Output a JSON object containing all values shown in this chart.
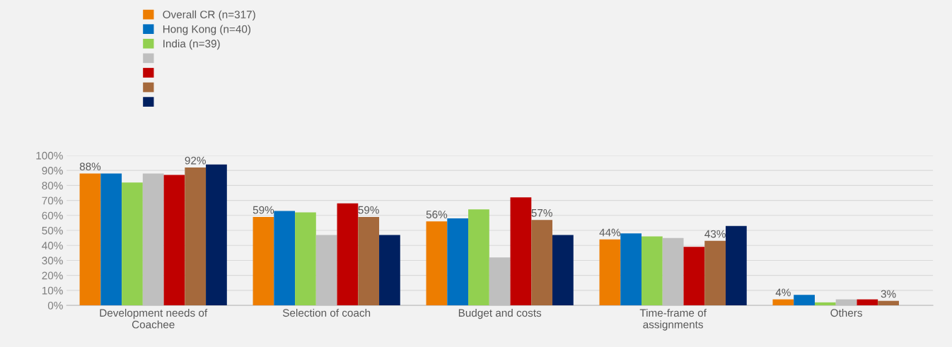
{
  "chart_data": {
    "type": "bar",
    "categories": [
      "Development needs of\nCoachee",
      "Selection of coach",
      "Budget and costs",
      "Time-frame of\nassignments",
      "Others"
    ],
    "series": [
      {
        "name": "Overall CR (n=317)",
        "color": "#ed7d00",
        "values": [
          88,
          59,
          56,
          44,
          4
        ],
        "value_labels": [
          "88%",
          "59%",
          "56%",
          "44%",
          "4%"
        ]
      },
      {
        "name": "Hong Kong (n=40)",
        "color": "#0070c0",
        "values": [
          88,
          63,
          58,
          48,
          7
        ]
      },
      {
        "name": "India (n=39)",
        "color": "#92d050",
        "values": [
          82,
          62,
          64,
          46,
          2
        ]
      },
      {
        "color": "#bfbfbf",
        "values": [
          88,
          47,
          32,
          45,
          4
        ]
      },
      {
        "color": "#c00000",
        "values": [
          87,
          68,
          72,
          39,
          4
        ]
      },
      {
        "color": "#a5693c",
        "values": [
          92,
          59,
          57,
          43,
          3
        ],
        "value_labels": [
          "92%",
          "59%",
          "57%",
          "43%",
          "3%"
        ]
      },
      {
        "color": "#002060",
        "values": [
          94,
          47,
          47,
          53,
          0
        ]
      }
    ],
    "ylim": [
      0,
      100
    ],
    "yticks": [
      {
        "value": 0,
        "label": "0%"
      },
      {
        "value": 10,
        "label": "10%"
      },
      {
        "value": 20,
        "label": "20%"
      },
      {
        "value": 30,
        "label": "30%"
      },
      {
        "value": 40,
        "label": "40%"
      },
      {
        "value": 50,
        "label": "50%"
      },
      {
        "value": 60,
        "label": "60%"
      },
      {
        "value": 70,
        "label": "70%"
      },
      {
        "value": 80,
        "label": "80%"
      },
      {
        "value": 90,
        "label": "90%"
      },
      {
        "value": 100,
        "label": "100%"
      }
    ],
    "grid": "y",
    "legend": "top left"
  }
}
